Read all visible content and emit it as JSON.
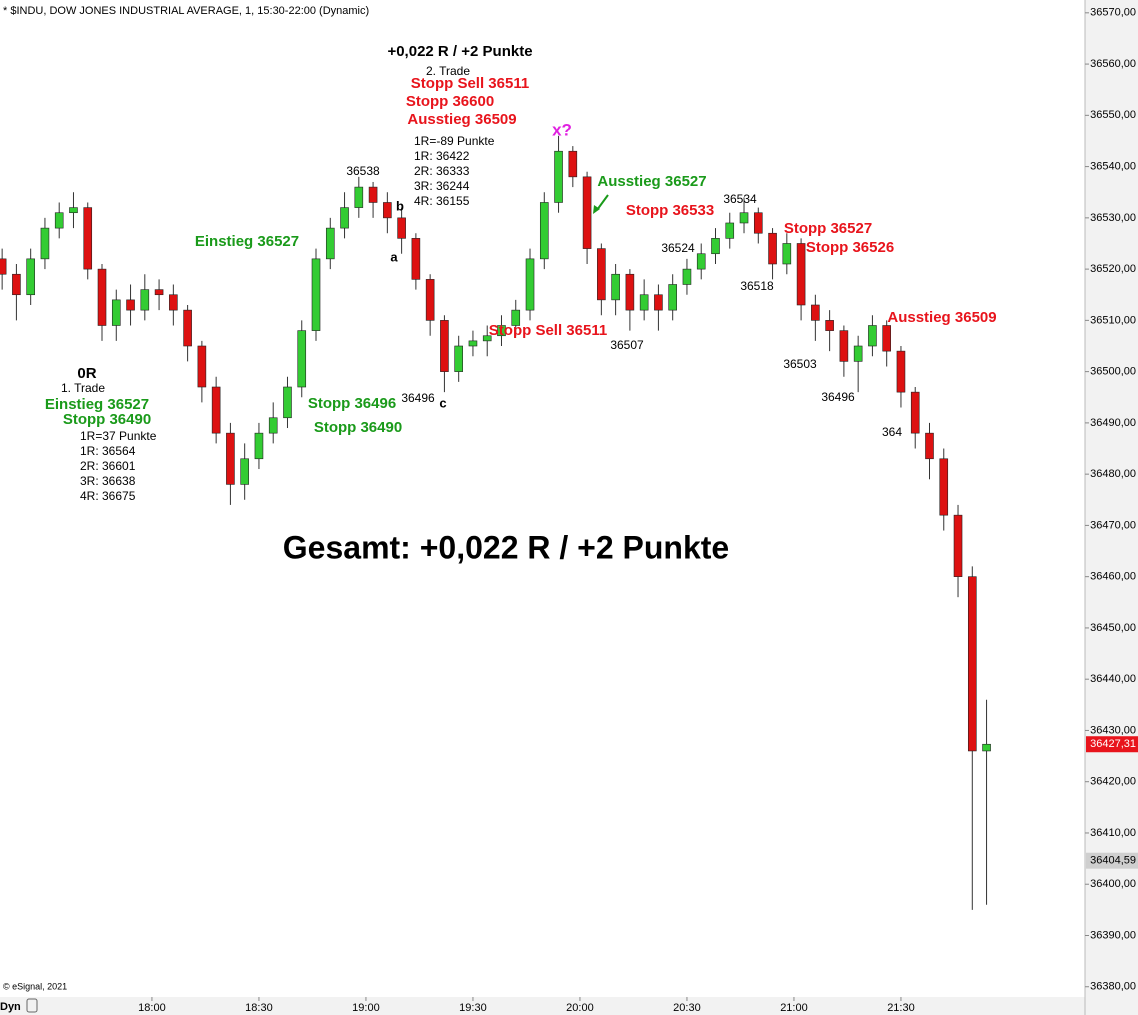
{
  "chart_data": {
    "type": "candlestick",
    "title": "* $INDU, DOW JONES INDUSTRIAL AVERAGE, 1, 15:30-22:00 (Dynamic)",
    "credit": "© eSignal, 2021",
    "mode": "Dyn",
    "up_color": "#33cc33",
    "down_color": "#dd1111",
    "x": [
      1038,
      1042,
      1046,
      1050,
      1054,
      1058,
      1062,
      1066,
      1070,
      1074,
      1078,
      1082,
      1086,
      1090,
      1094,
      1098,
      1102,
      1106,
      1110,
      1114,
      1118,
      1122,
      1126,
      1130,
      1134,
      1138,
      1142,
      1146,
      1150,
      1154,
      1158,
      1162,
      1166,
      1170,
      1174,
      1178,
      1182,
      1186,
      1190,
      1194,
      1198,
      1202,
      1206,
      1210,
      1214,
      1218,
      1222,
      1226,
      1230,
      1234,
      1238,
      1242,
      1246,
      1250,
      1254,
      1258,
      1262,
      1266,
      1270,
      1274,
      1278,
      1282,
      1286,
      1290,
      1294,
      1298,
      1302,
      1306,
      1310,
      1314
    ],
    "open": [
      36522,
      36519,
      36515,
      36522,
      36528,
      36531,
      36532,
      36520,
      36509,
      36514,
      36512,
      36516,
      36515,
      36512,
      36505,
      36497,
      36488,
      36478,
      36483,
      36488,
      36491,
      36497,
      36508,
      36522,
      36528,
      36532,
      36536,
      36533,
      36530,
      36526,
      36518,
      36510,
      36500,
      36505,
      36506,
      36507,
      36509,
      36512,
      36522,
      36533,
      36543,
      36538,
      36524,
      36514,
      36519,
      36512,
      36515,
      36512,
      36517,
      36520,
      36523,
      36526,
      36529,
      36531,
      36527,
      36521,
      36525,
      36513,
      36510,
      36508,
      36502,
      36505,
      36509,
      36504,
      36496,
      36488,
      36483,
      36472,
      36460,
      36426
    ],
    "high": [
      36524,
      36521,
      36524,
      36530,
      36533,
      36535,
      36533,
      36521,
      36516,
      36517,
      36519,
      36518,
      36517,
      36513,
      36506,
      36499,
      36490,
      36486,
      36490,
      36494,
      36499,
      36510,
      36524,
      36530,
      36535,
      36538,
      36537,
      36535,
      36532,
      36527,
      36519,
      36511,
      36507,
      36508,
      36509,
      36511,
      36514,
      36524,
      36535,
      36546,
      36544,
      36539,
      36525,
      36521,
      36520,
      36518,
      36517,
      36519,
      36522,
      36525,
      36528,
      36531,
      36534,
      36532,
      36528,
      36527,
      36526,
      36515,
      36512,
      36509,
      36507,
      36511,
      36510,
      36505,
      36497,
      36490,
      36485,
      36474,
      36462,
      36436
    ],
    "low": [
      36516,
      36510,
      36513,
      36520,
      36526,
      36528,
      36518,
      36506,
      36506,
      36509,
      36510,
      36512,
      36509,
      36502,
      36494,
      36486,
      36474,
      36475,
      36481,
      36486,
      36489,
      36495,
      36506,
      36520,
      36526,
      36530,
      36530,
      36527,
      36523,
      36516,
      36507,
      36496,
      36498,
      36503,
      36503,
      36505,
      36507,
      36510,
      36520,
      36531,
      36536,
      36521,
      36511,
      36511,
      36508,
      36510,
      36508,
      36510,
      36515,
      36518,
      36521,
      36524,
      36527,
      36525,
      36518,
      36519,
      36510,
      36506,
      36504,
      36499,
      36496,
      36503,
      36501,
      36493,
      36485,
      36479,
      36469,
      36456,
      36395,
      36396
    ],
    "close": [
      36519,
      36515,
      36522,
      36528,
      36531,
      36532,
      36520,
      36509,
      36514,
      36512,
      36516,
      36515,
      36512,
      36505,
      36497,
      36488,
      36478,
      36483,
      36488,
      36491,
      36497,
      36508,
      36522,
      36528,
      36532,
      36536,
      36533,
      36530,
      36526,
      36518,
      36510,
      36500,
      36505,
      36506,
      36507,
      36509,
      36512,
      36522,
      36533,
      36543,
      36538,
      36524,
      36514,
      36519,
      36512,
      36515,
      36512,
      36517,
      36520,
      36523,
      36526,
      36529,
      36531,
      36527,
      36521,
      36525,
      36513,
      36510,
      36508,
      36502,
      36505,
      36509,
      36504,
      36496,
      36488,
      36483,
      36472,
      36460,
      36426,
      36427.31
    ],
    "xlim": [
      1037.4,
      1341.6
    ],
    "ylim": [
      36378,
      36572.5
    ],
    "xticks": [
      {
        "value": 1080,
        "label": "18:00"
      },
      {
        "value": 1110,
        "label": "18:30"
      },
      {
        "value": 1140,
        "label": "19:00"
      },
      {
        "value": 1170,
        "label": "19:30"
      },
      {
        "value": 1200,
        "label": "20:00"
      },
      {
        "value": 1230,
        "label": "20:30"
      },
      {
        "value": 1260,
        "label": "21:00"
      },
      {
        "value": 1290,
        "label": "21:30"
      }
    ],
    "yticks": [
      {
        "value": 36380,
        "label": "36380,00"
      },
      {
        "value": 36390,
        "label": "36390,00"
      },
      {
        "value": 36400,
        "label": "36400,00"
      },
      {
        "value": 36410,
        "label": "36410,00"
      },
      {
        "value": 36420,
        "label": "36420,00"
      },
      {
        "value": 36430,
        "label": "36430,00"
      },
      {
        "value": 36440,
        "label": "36440,00"
      },
      {
        "value": 36450,
        "label": "36450,00"
      },
      {
        "value": 36460,
        "label": "36460,00"
      },
      {
        "value": 36470,
        "label": "36470,00"
      },
      {
        "value": 36480,
        "label": "36480,00"
      },
      {
        "value": 36490,
        "label": "36490,00"
      },
      {
        "value": 36500,
        "label": "36500,00"
      },
      {
        "value": 36510,
        "label": "36510,00"
      },
      {
        "value": 36520,
        "label": "36520,00"
      },
      {
        "value": 36530,
        "label": "36530,00"
      },
      {
        "value": 36540,
        "label": "36540,00"
      },
      {
        "value": 36550,
        "label": "36550,00"
      },
      {
        "value": 36560,
        "label": "36560,00"
      },
      {
        "value": 36570,
        "label": "36570,00"
      }
    ],
    "last_price": {
      "value": 36427.31,
      "label": "36427,31"
    },
    "marker_price": {
      "value": 36404.59,
      "label": "36404,59"
    },
    "annotations": [
      "+0,022 R / +2 Punkte",
      "2. Trade",
      "Stopp Sell 36511",
      "Stopp 36600",
      "Ausstieg 36509",
      "x?",
      "1R=-89 Punkte",
      "1R: 36422",
      "2R: 36333",
      "3R: 36244",
      "4R: 36155",
      "36538",
      "b",
      "a",
      "Einstieg 36527",
      "Ausstieg 36527",
      "36534",
      "Stopp 36533",
      "36524",
      "Stopp 36527",
      "Stopp 36526",
      "36518",
      "Stopp Sell 36511",
      "36507",
      "Ausstieg 36509",
      "36503",
      "36496",
      "364",
      "0R",
      "1. Trade",
      "Einstieg 36527",
      "Stopp 36490",
      "1R=37 Punkte",
      "1R: 36564",
      "2R: 36601",
      "3R: 36638",
      "4R: 36675",
      "Stopp 36496",
      "Stopp 36490",
      "36496",
      "c",
      "Gesamt: +0,022 R / +2 Punkte"
    ]
  }
}
